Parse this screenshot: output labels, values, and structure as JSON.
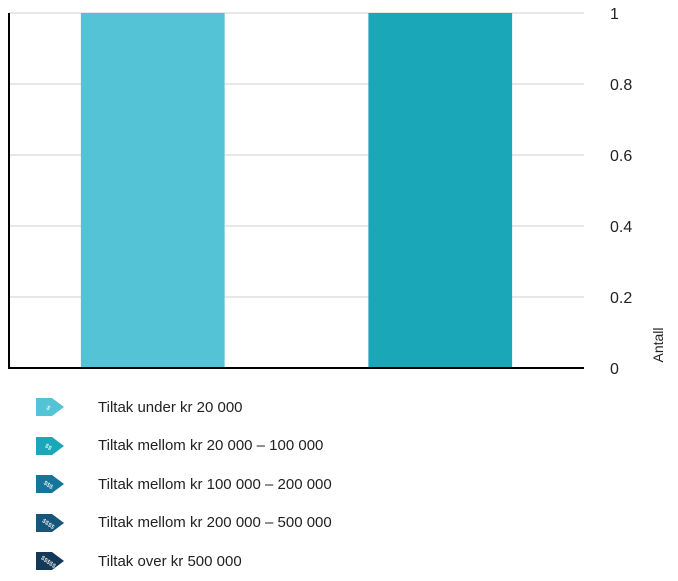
{
  "chart_data": {
    "type": "bar",
    "categories": [
      "",
      ""
    ],
    "values": [
      1,
      1
    ],
    "bar_colors": [
      "#55c3d6",
      "#1aa7b8"
    ],
    "ylabel": "Antall",
    "ylim": [
      0,
      1
    ],
    "yticks": [
      "0",
      "0.2",
      "0.4",
      "0.6",
      "0.8",
      "1"
    ],
    "grid": true,
    "y_axis_side": "right",
    "legend_position": "bottom"
  },
  "legend": {
    "items": [
      {
        "label": "Tiltak under kr 20 000",
        "icon": "price-tag-icon",
        "symbol": "$",
        "color": "#55c3d6"
      },
      {
        "label": "Tiltak mellom kr 20 000 – 100 000",
        "icon": "price-tag-icon",
        "symbol": "$$",
        "color": "#1aa7b8"
      },
      {
        "label": "Tiltak mellom kr 100 000 – 200 000",
        "icon": "price-tag-icon",
        "symbol": "$$$",
        "color": "#16759a"
      },
      {
        "label": "Tiltak mellom kr 200 000 – 500 000",
        "icon": "price-tag-icon",
        "symbol": "$$$$",
        "color": "#15567a"
      },
      {
        "label": "Tiltak over kr 500 000",
        "icon": "price-tag-icon",
        "symbol": "$$$$$",
        "color": "#153858"
      }
    ]
  }
}
